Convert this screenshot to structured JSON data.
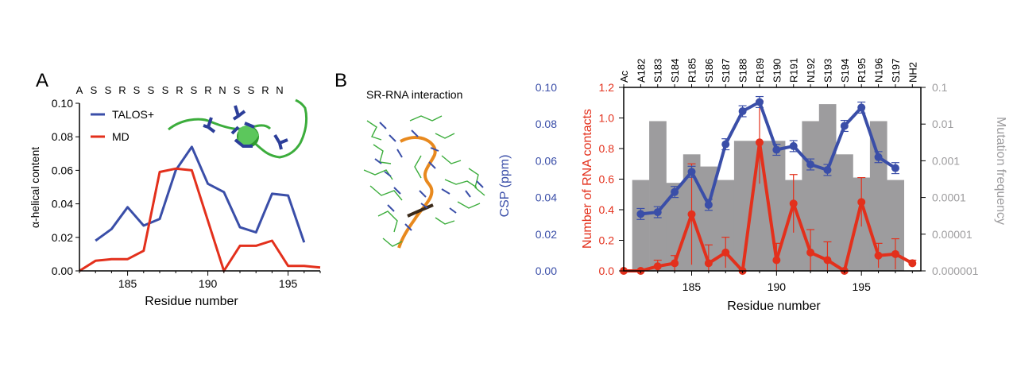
{
  "panel_a": {
    "label": "A",
    "sequence": [
      "A",
      "S",
      "S",
      "R",
      "S",
      "S",
      "S",
      "R",
      "S",
      "R",
      "N",
      "S",
      "S",
      "R",
      "N"
    ],
    "ylabel": "α-helical content",
    "xlabel": "Residue number",
    "legend": [
      "TALOS+",
      "MD"
    ]
  },
  "panel_b": {
    "label": "B",
    "inset_title": "SR-RNA interaction",
    "top_labels": [
      "Ac",
      "A182",
      "S183",
      "S184",
      "R185",
      "S186",
      "S187",
      "S188",
      "R189",
      "S190",
      "R191",
      "N192",
      "S193",
      "S194",
      "R195",
      "N196",
      "S197",
      "NH2"
    ],
    "xlabel": "Residue number",
    "y1label": "CSP (ppm)",
    "y2label": "Number of RNA contacts",
    "y3label": "Mutation frequency"
  },
  "colors": {
    "blue": "#3a4ea8",
    "red": "#e3301c",
    "gray": "#9d9c9e",
    "green": "#3cad3c",
    "orange": "#e8891e"
  },
  "chart_data": [
    {
      "type": "line",
      "panel": "A",
      "xlabel": "Residue number",
      "ylabel": "α-helical content",
      "xlim": [
        182,
        197
      ],
      "ylim": [
        0,
        0.1
      ],
      "xticks": [
        185,
        190,
        195
      ],
      "yticks": [
        "0.00",
        "0.02",
        "0.04",
        "0.06",
        "0.08",
        "0.10"
      ],
      "series": [
        {
          "name": "TALOS+",
          "color": "#3a4ea8",
          "x": [
            183,
            184,
            185,
            186,
            187,
            188,
            189,
            190,
            191,
            192,
            193,
            194,
            195,
            196
          ],
          "y": [
            0.018,
            0.025,
            0.038,
            0.027,
            0.031,
            0.06,
            0.074,
            0.052,
            0.047,
            0.026,
            0.023,
            0.046,
            0.045,
            0.017
          ]
        },
        {
          "name": "MD",
          "color": "#e3301c",
          "x": [
            182,
            183,
            184,
            185,
            186,
            187,
            188,
            189,
            190,
            191,
            192,
            193,
            194,
            195,
            196,
            197
          ],
          "y": [
            0.0,
            0.006,
            0.007,
            0.007,
            0.012,
            0.059,
            0.061,
            0.06,
            0.03,
            0.0,
            0.015,
            0.015,
            0.018,
            0.003,
            0.003,
            0.002
          ]
        }
      ]
    },
    {
      "type": "bar",
      "panel": "B",
      "name": "Mutation frequency",
      "xlim": [
        181,
        198.5
      ],
      "x": [
        182,
        183,
        184,
        185,
        186,
        187,
        188,
        189,
        190,
        191,
        192,
        193,
        194,
        195,
        196,
        197
      ],
      "values": [
        0.0003,
        0.012,
        0.00025,
        0.0015,
        0.0007,
        0.0003,
        0.0035,
        0.0035,
        0.0035,
        0.0003,
        0.012,
        0.035,
        0.0015,
        0.00035,
        0.012,
        0.0003
      ],
      "scale": "log",
      "ylim": [
        1e-06,
        0.1
      ],
      "yticks": [
        "0.000001",
        "0.00001",
        "0.0001",
        "0.001",
        "0.01",
        "0.1"
      ]
    },
    {
      "type": "line",
      "panel": "B",
      "name": "CSP (ppm)",
      "ylim": [
        0,
        0.1
      ],
      "yticks": [
        "0.00",
        "0.02",
        "0.04",
        "0.06",
        "0.08",
        "0.10"
      ],
      "xticks": [
        185,
        190,
        195
      ],
      "x": [
        182,
        183,
        184,
        185,
        186,
        187,
        188,
        189,
        190,
        191,
        192,
        193,
        194,
        195,
        196,
        197
      ],
      "y": [
        0.031,
        0.032,
        0.043,
        0.054,
        0.036,
        0.069,
        0.087,
        0.092,
        0.066,
        0.068,
        0.058,
        0.055,
        0.079,
        0.089,
        0.062,
        0.056
      ],
      "err": [
        0.003,
        0.003,
        0.003,
        0.003,
        0.003,
        0.003,
        0.003,
        0.003,
        0.003,
        0.003,
        0.003,
        0.003,
        0.003,
        0.003,
        0.003,
        0.003
      ]
    },
    {
      "type": "line",
      "panel": "B",
      "name": "Number of RNA contacts",
      "ylim": [
        0,
        1.2
      ],
      "yticks": [
        "0.0",
        "0.2",
        "0.4",
        "0.6",
        "0.8",
        "1.0",
        "1.2"
      ],
      "x": [
        181,
        182,
        183,
        184,
        185,
        186,
        187,
        188,
        189,
        190,
        191,
        192,
        193,
        194,
        195,
        196,
        197,
        198
      ],
      "y": [
        0.0,
        0.0,
        0.03,
        0.05,
        0.37,
        0.05,
        0.12,
        0.0,
        0.84,
        0.07,
        0.44,
        0.12,
        0.07,
        0.0,
        0.45,
        0.1,
        0.11,
        0.05
      ],
      "err": [
        0,
        0,
        0.04,
        0.05,
        0.33,
        0.12,
        0.1,
        0,
        0.27,
        0.11,
        0.19,
        0.15,
        0.12,
        0,
        0.16,
        0.08,
        0.1,
        0.02
      ]
    }
  ]
}
